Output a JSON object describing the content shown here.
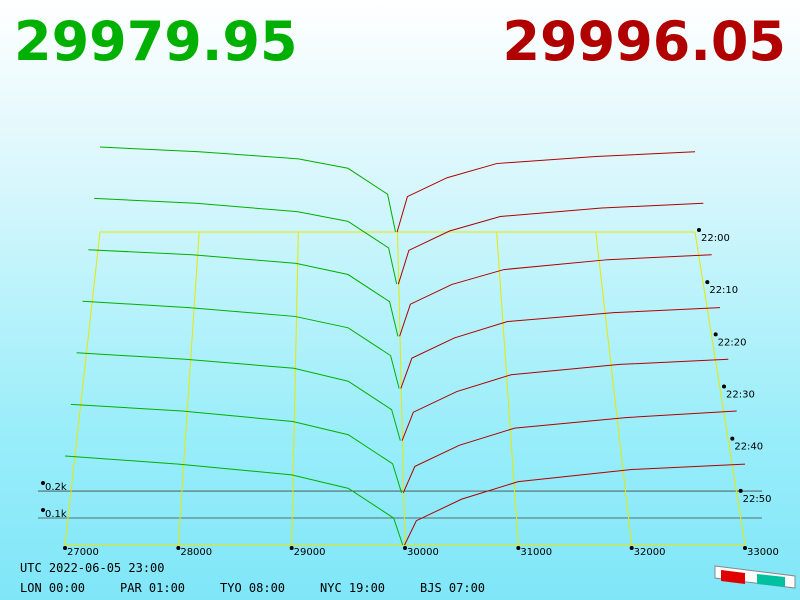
{
  "chart_data": {
    "type": "depth3d",
    "bid_price": 29979.95,
    "ask_price": 29996.05,
    "bid_color": "#00b000",
    "ask_color": "#b00000",
    "xlim": [
      27000,
      33000
    ],
    "xticks": [
      27000,
      28000,
      29000,
      30000,
      31000,
      32000,
      33000
    ],
    "volume_ticks": [
      {
        "value": 100,
        "label": "0.1k"
      },
      {
        "value": 200,
        "label": "0.2k"
      }
    ],
    "times": [
      "22:00",
      "22:10",
      "22:20",
      "22:30",
      "22:40",
      "22:50"
    ],
    "bid_prices": [
      27000,
      28000,
      29000,
      29500,
      29900,
      29979.95
    ],
    "ask_prices": [
      29996.05,
      30100,
      30500,
      31000,
      32000,
      33000
    ],
    "snapshots": [
      {
        "bid": [
          360,
          340,
          310,
          270,
          160,
          0
        ],
        "ask": [
          0,
          150,
          230,
          290,
          320,
          340
        ]
      },
      {
        "bid": [
          355,
          335,
          300,
          260,
          150,
          0
        ],
        "ask": [
          0,
          140,
          220,
          280,
          315,
          335
        ]
      },
      {
        "bid": [
          350,
          330,
          295,
          250,
          140,
          0
        ],
        "ask": [
          0,
          130,
          210,
          270,
          310,
          330
        ]
      },
      {
        "bid": [
          345,
          320,
          285,
          240,
          130,
          0
        ],
        "ask": [
          0,
          120,
          200,
          265,
          300,
          320
        ]
      },
      {
        "bid": [
          340,
          315,
          280,
          230,
          120,
          0
        ],
        "ask": [
          0,
          110,
          190,
          255,
          295,
          315
        ]
      },
      {
        "bid": [
          335,
          310,
          270,
          220,
          110,
          0
        ],
        "ask": [
          0,
          100,
          180,
          245,
          285,
          310
        ]
      },
      {
        "bid": [
          330,
          300,
          260,
          210,
          100,
          0
        ],
        "ask": [
          0,
          90,
          170,
          235,
          280,
          300
        ]
      }
    ],
    "utc": "UTC 2022-06-05 23:00",
    "cities": [
      "LON 00:00",
      "PAR 01:00",
      "TYO 08:00",
      "NYC 19:00",
      "BJS 07:00"
    ]
  }
}
